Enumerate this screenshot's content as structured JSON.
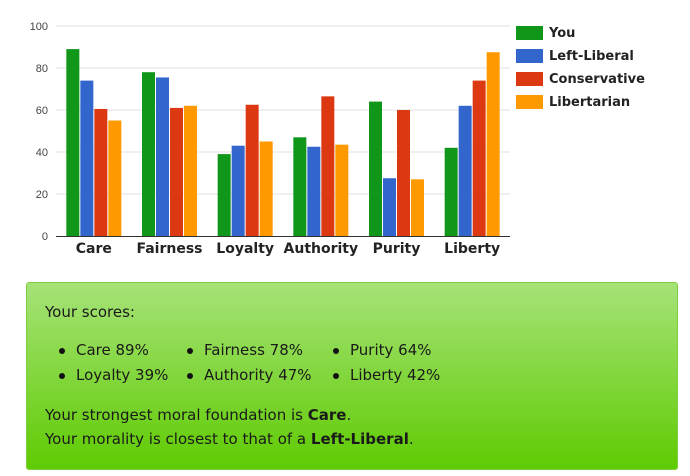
{
  "chart_data": {
    "type": "bar",
    "categories": [
      "Care",
      "Fairness",
      "Loyalty",
      "Authority",
      "Purity",
      "Liberty"
    ],
    "series": [
      {
        "name": "You",
        "color": "#109618",
        "values": [
          89,
          78,
          39,
          47,
          64,
          42
        ]
      },
      {
        "name": "Left-Liberal",
        "color": "#3366cc",
        "values": [
          74,
          75.5,
          43,
          42.5,
          27.5,
          62
        ]
      },
      {
        "name": "Conservative",
        "color": "#dc3912",
        "values": [
          60.5,
          61,
          62.5,
          66.5,
          60,
          74
        ]
      },
      {
        "name": "Libertarian",
        "color": "#ff9900",
        "values": [
          55,
          62,
          45,
          43.5,
          27,
          87.5
        ]
      }
    ],
    "yticks": [
      0,
      20,
      40,
      60,
      80,
      100
    ],
    "ylim": [
      0,
      100
    ],
    "grid": true,
    "legend_position": "right",
    "title": "",
    "xlabel": "",
    "ylabel": ""
  },
  "results": {
    "heading": "Your scores:",
    "scores": [
      {
        "label": "Care 89%"
      },
      {
        "label": "Fairness 78%"
      },
      {
        "label": "Purity 64%"
      },
      {
        "label": "Loyalty 39%"
      },
      {
        "label": "Authority 47%"
      },
      {
        "label": "Liberty 42%"
      }
    ],
    "strongest_prefix": "Your strongest moral foundation is ",
    "strongest_value": "Care",
    "strongest_suffix": ".",
    "closest_prefix": "Your morality is closest to that of a ",
    "closest_value": "Left-Liberal",
    "closest_suffix": "."
  }
}
